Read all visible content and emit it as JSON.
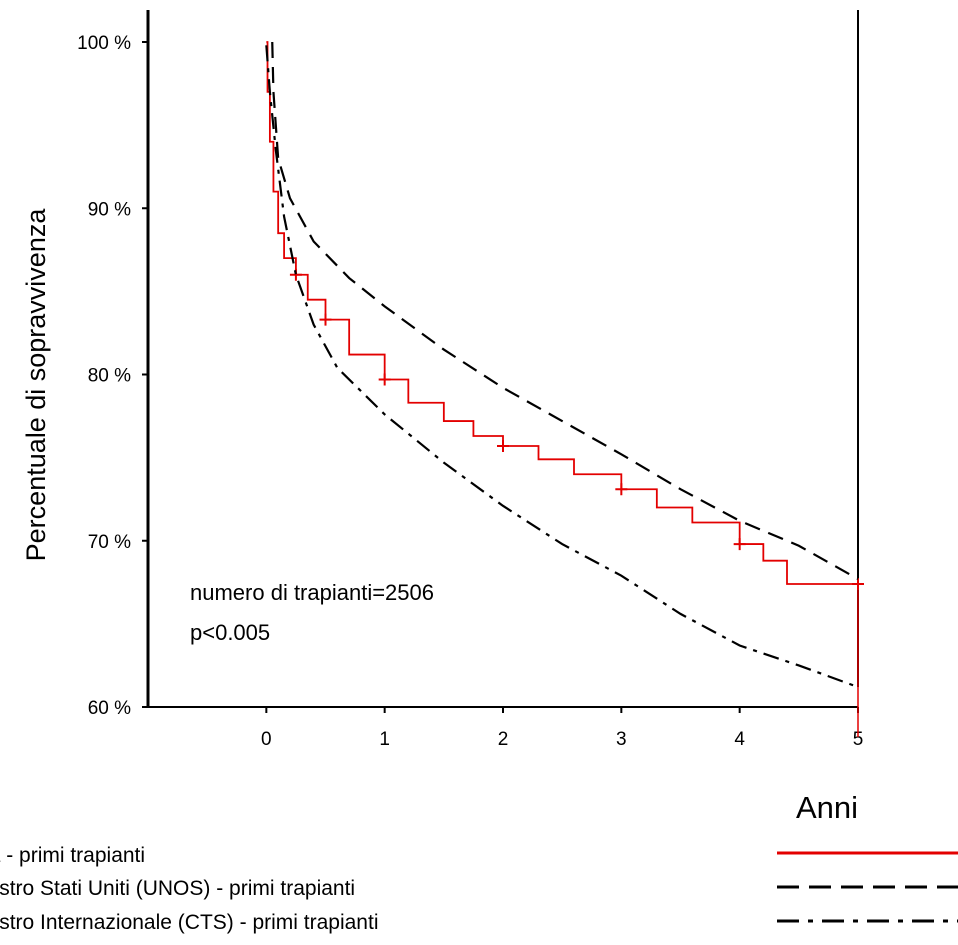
{
  "chart_data": {
    "type": "line",
    "title": "",
    "xlabel": "Anni",
    "ylabel": "Percentuale di sopravvivenza",
    "xlim": [
      -1,
      5
    ],
    "ylim": [
      60,
      100
    ],
    "x_ticks": [
      "0",
      "1",
      "2",
      "3",
      "4",
      "5"
    ],
    "y_ticks": [
      "100 %",
      "90 %",
      "80 %",
      "70 %",
      "60 %"
    ],
    "annotations": [
      "numero di trapianti=2506",
      "p<0.005"
    ],
    "legend_position": "bottom",
    "series": [
      {
        "name": "Italia - primi trapianti",
        "color": "#e30000",
        "style": "solid",
        "censor_marks": [
          [
            0.25,
            86.0
          ],
          [
            0.5,
            83.3
          ],
          [
            1,
            79.7
          ],
          [
            2,
            75.7
          ],
          [
            3,
            73.1
          ],
          [
            4,
            69.8
          ],
          [
            5,
            67.4
          ]
        ],
        "points": [
          [
            0,
            100
          ],
          [
            0.01,
            97
          ],
          [
            0.03,
            94
          ],
          [
            0.06,
            91
          ],
          [
            0.1,
            88.5
          ],
          [
            0.15,
            87
          ],
          [
            0.25,
            86
          ],
          [
            0.35,
            84.5
          ],
          [
            0.5,
            83.3
          ],
          [
            0.7,
            81.2
          ],
          [
            1,
            79.7
          ],
          [
            1.2,
            78.3
          ],
          [
            1.5,
            77.2
          ],
          [
            1.75,
            76.3
          ],
          [
            2,
            75.7
          ],
          [
            2.3,
            74.9
          ],
          [
            2.6,
            74.0
          ],
          [
            3,
            73.1
          ],
          [
            3.3,
            72.0
          ],
          [
            3.6,
            71.1
          ],
          [
            4,
            69.8
          ],
          [
            4.2,
            68.8
          ],
          [
            4.4,
            67.4
          ],
          [
            5,
            67.4
          ]
        ]
      },
      {
        "name": "Registro Stati Uniti (UNOS) - primi trapianti",
        "color": "#000000",
        "style": "dashed",
        "points": [
          [
            0.05,
            100
          ],
          [
            0.06,
            97
          ],
          [
            0.1,
            93
          ],
          [
            0.2,
            90.6
          ],
          [
            0.4,
            88
          ],
          [
            0.7,
            85.8
          ],
          [
            1,
            84.1
          ],
          [
            1.5,
            81.5
          ],
          [
            2,
            79.2
          ],
          [
            2.5,
            77.2
          ],
          [
            3,
            75.2
          ],
          [
            3.5,
            73.1
          ],
          [
            4,
            71.2
          ],
          [
            4.5,
            69.7
          ],
          [
            5,
            67.7
          ]
        ]
      },
      {
        "name": "Registro Internazionale (CTS) - primi trapianti",
        "color": "#000000",
        "style": "dashdot",
        "points": [
          [
            0,
            99.8
          ],
          [
            0.03,
            97
          ],
          [
            0.08,
            93.5
          ],
          [
            0.15,
            89.5
          ],
          [
            0.25,
            86
          ],
          [
            0.4,
            83
          ],
          [
            0.6,
            80.4
          ],
          [
            1,
            77.6
          ],
          [
            1.5,
            74.7
          ],
          [
            2,
            72.1
          ],
          [
            2.5,
            69.8
          ],
          [
            3,
            67.9
          ],
          [
            3.5,
            65.6
          ],
          [
            4,
            63.7
          ],
          [
            4.5,
            62.5
          ],
          [
            5,
            61.2
          ]
        ]
      }
    ]
  }
}
